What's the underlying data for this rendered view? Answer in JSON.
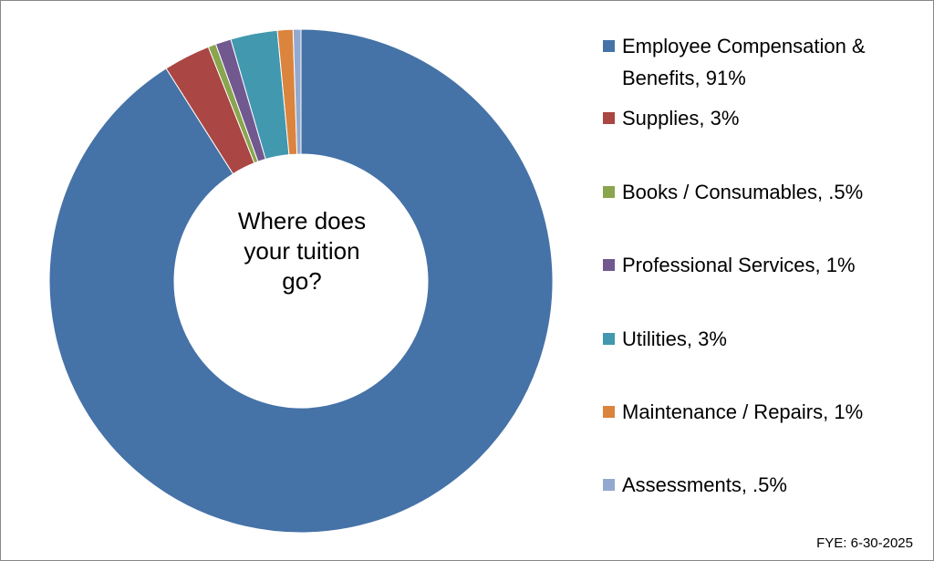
{
  "chart_data": {
    "type": "donut",
    "title": "Where does your tuition go?",
    "note": "FYE: 6-30-2025",
    "categories": [
      "Employee Compensation & Benefits, 91%",
      "Supplies, 3%",
      "Books / Consumables, .5%",
      "Professional Services, 1%",
      "Utilities, 3%",
      "Maintenance / Repairs, 1%",
      "Assessments, .5%"
    ],
    "values": [
      91,
      3,
      0.5,
      1,
      3,
      1,
      0.5
    ],
    "colors": [
      "#4572a7",
      "#aa4643",
      "#89a54e",
      "#71588f",
      "#4198af",
      "#db843d",
      "#93a9cf"
    ]
  }
}
